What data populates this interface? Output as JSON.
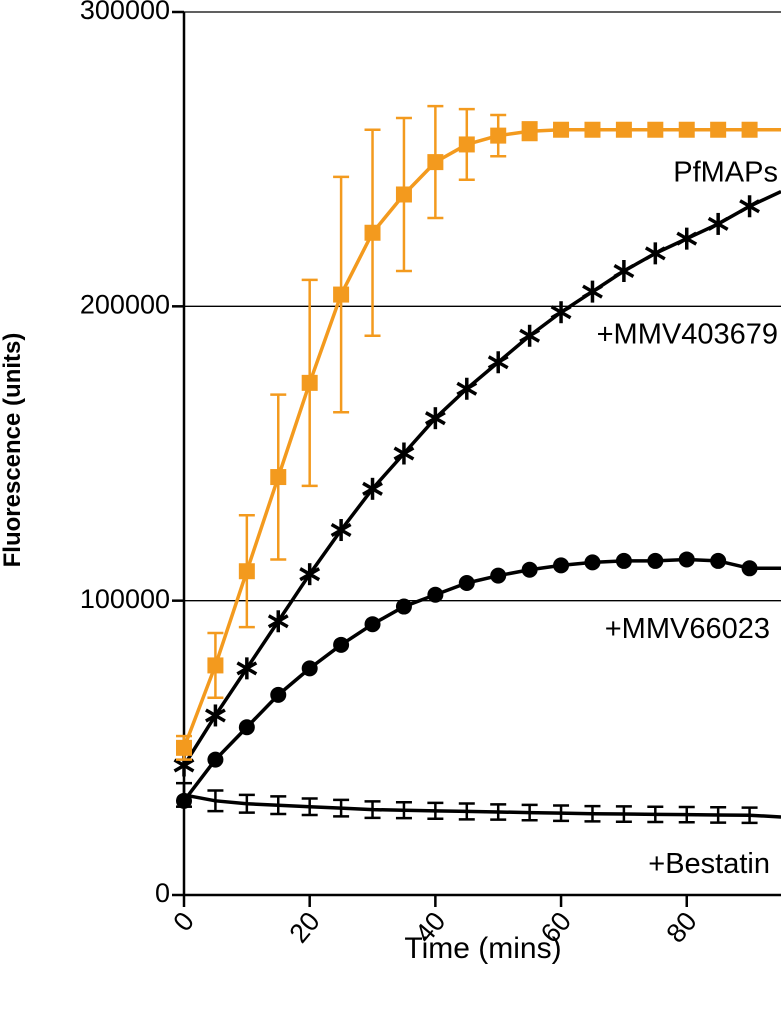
{
  "chart_data": {
    "type": "line",
    "title": "",
    "xlabel": "Time (mins)",
    "ylabel": "Fluorescence (units)",
    "xlim": [
      0,
      95
    ],
    "ylim": [
      0,
      300000
    ],
    "x_ticks": [
      "0",
      "20",
      "40",
      "60",
      "80"
    ],
    "x_tick_values": [
      0,
      20,
      40,
      60,
      80
    ],
    "y_ticks": [
      "0",
      "100000",
      "200000",
      "300000"
    ],
    "y_tick_values": [
      0,
      100000,
      200000,
      300000
    ],
    "gridlines_y": [
      100000,
      200000,
      300000
    ],
    "series": [
      {
        "name": "PfMAPs",
        "label": "PfMAPs",
        "color": "#f39a1e",
        "marker": "square",
        "x": [
          0,
          5,
          10,
          15,
          20,
          25,
          30,
          35,
          40,
          45,
          50,
          55,
          60,
          65,
          70,
          75,
          80,
          85,
          90
        ],
        "values": [
          50000,
          78000,
          110000,
          142000,
          174000,
          204000,
          225000,
          238000,
          249000,
          255000,
          258000,
          259500,
          260000,
          260000,
          260000,
          260000,
          260000,
          260000,
          260000
        ],
        "error": [
          4000,
          11000,
          19000,
          28000,
          35000,
          40000,
          35000,
          26000,
          19000,
          12000,
          7000,
          3000,
          1000,
          0,
          0,
          0,
          0,
          0,
          0
        ],
        "fit_end": [
          95,
          260000
        ]
      },
      {
        "name": "+MMV403679",
        "label": "+MMV403679",
        "color": "#000000",
        "marker": "asterisk",
        "x": [
          0,
          5,
          10,
          15,
          20,
          25,
          30,
          35,
          40,
          45,
          50,
          55,
          60,
          65,
          70,
          75,
          80,
          85,
          90
        ],
        "values": [
          44000,
          61000,
          77000,
          93000,
          109000,
          124000,
          138000,
          150000,
          162000,
          172000,
          181000,
          190000,
          198000,
          205000,
          212000,
          218000,
          223000,
          228000,
          234000
        ],
        "error": [],
        "fit_end": [
          95,
          239000
        ]
      },
      {
        "name": "+MMV66023",
        "label": "+MMV66023",
        "color": "#000000",
        "marker": "circle",
        "x": [
          0,
          5,
          10,
          15,
          20,
          25,
          30,
          35,
          40,
          45,
          50,
          55,
          60,
          65,
          70,
          75,
          80,
          85,
          90
        ],
        "values": [
          32000,
          46000,
          57000,
          68000,
          77000,
          85000,
          92000,
          98000,
          102000,
          106000,
          108500,
          110500,
          112000,
          113000,
          113500,
          113500,
          114000,
          113500,
          111000
        ],
        "error": [],
        "fit_end": [
          95,
          111000
        ]
      },
      {
        "name": "+Bestatin",
        "label": "+Bestatin",
        "color": "#000000",
        "marker": "none",
        "x": [
          0,
          5,
          10,
          15,
          20,
          25,
          30,
          35,
          40,
          45,
          50,
          55,
          60,
          65,
          70,
          75,
          80,
          85,
          90
        ],
        "values": [
          34000,
          32000,
          31000,
          30500,
          30000,
          29500,
          29000,
          28800,
          28600,
          28400,
          28200,
          28000,
          27800,
          27600,
          27500,
          27400,
          27300,
          27200,
          27100
        ],
        "error": [
          4000,
          3500,
          3000,
          3000,
          2800,
          2800,
          2800,
          2700,
          2700,
          2700,
          2600,
          2600,
          2600,
          2600,
          2600,
          2600,
          2600,
          2600,
          2600
        ],
        "fit_end": [
          95,
          26500
        ]
      }
    ]
  }
}
